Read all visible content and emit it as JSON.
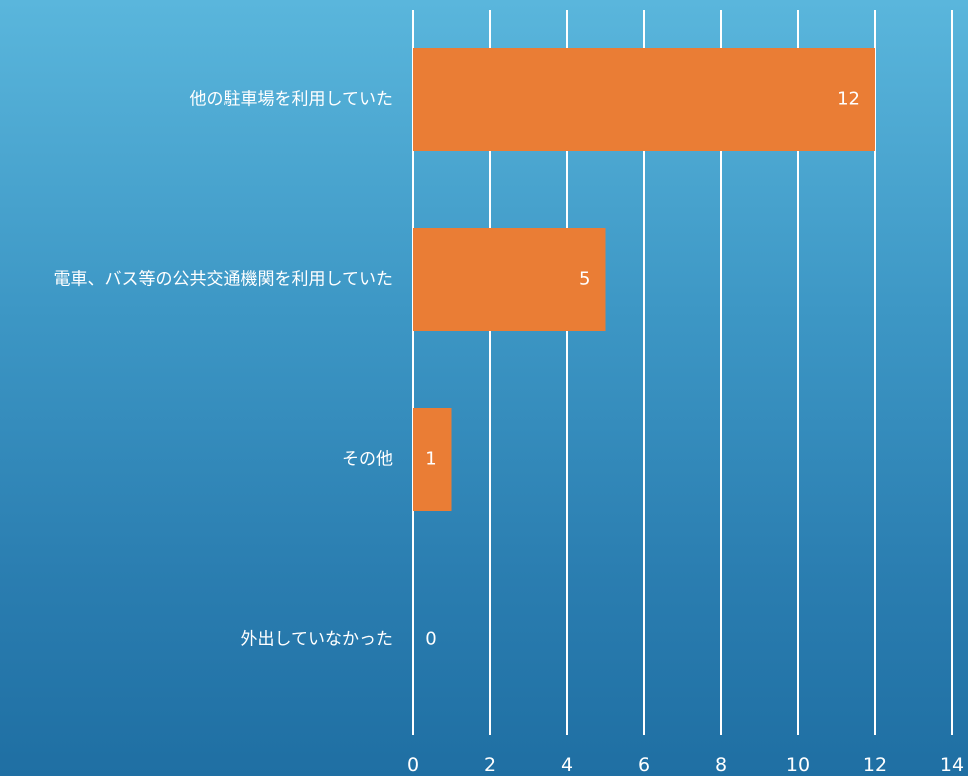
{
  "chart_data": {
    "type": "bar",
    "orientation": "horizontal",
    "categories": [
      "他の駐車場を利用していた",
      "電車、バス等の公共交通機関を利用していた",
      "その他",
      "外出していなかった"
    ],
    "values": [
      12,
      5,
      1,
      0
    ],
    "data_labels": [
      "12",
      "5",
      "1",
      "0"
    ],
    "x_ticks": [
      "0",
      "2",
      "4",
      "6",
      "8",
      "10",
      "12",
      "14"
    ],
    "xlim": [
      0,
      14
    ],
    "grid": true,
    "legend": "none",
    "title": "",
    "xlabel": "",
    "ylabel": ""
  },
  "colors": {
    "bar": "#ea7d35",
    "grid": "#ffffff",
    "text": "#ffffff"
  }
}
